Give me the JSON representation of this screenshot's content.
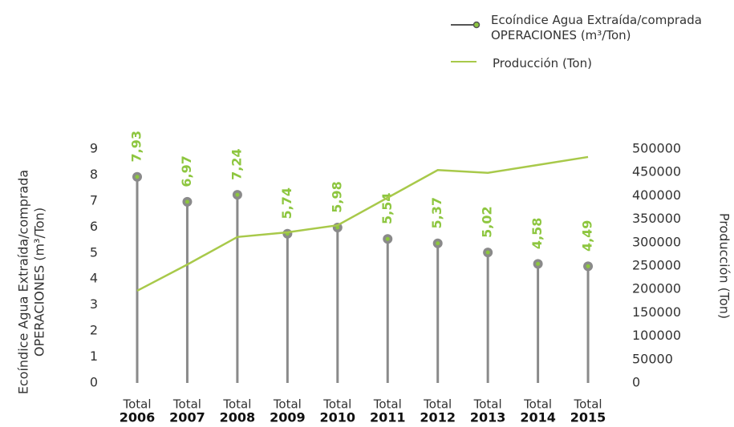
{
  "chart_data": {
    "type": "lollipop-line",
    "categories": [
      [
        "Total",
        "2006"
      ],
      [
        "Total",
        "2007"
      ],
      [
        "Total",
        "2008"
      ],
      [
        "Total",
        "2009"
      ],
      [
        "Total",
        "2010"
      ],
      [
        "Total",
        "2011"
      ],
      [
        "Total",
        "2012"
      ],
      [
        "Total",
        "2013"
      ],
      [
        "Total",
        "2014"
      ],
      [
        "Total",
        "2015"
      ]
    ],
    "series": [
      {
        "name": "Ecoíndice Agua Extraída/comprada OPERACIONES (m³/Ton)",
        "color": "#8a8a8a",
        "marker_color": "#8dc63f",
        "values": [
          7.93,
          6.97,
          7.24,
          5.74,
          5.98,
          5.54,
          5.37,
          5.02,
          4.58,
          4.49
        ],
        "value_labels": [
          "7,93",
          "6,97",
          "7,24",
          "5,74",
          "5,98",
          "5,54",
          "5,37",
          "5,02",
          "4,58",
          "4,49"
        ]
      },
      {
        "name": "Producción (Ton)",
        "color": "#a8c94a",
        "axis": "y2",
        "values": [
          197000,
          253000,
          312000,
          322000,
          337000,
          396000,
          455000,
          449000,
          466000,
          483000
        ]
      }
    ],
    "ylabel": [
      "Ecoíndice Agua Extraída/comprada",
      "OPERACIONES (m³/Ton)"
    ],
    "y2label": "Producción (Ton)",
    "ylim": [
      0,
      9
    ],
    "yticks": [
      0,
      1,
      2,
      3,
      4,
      5,
      6,
      7,
      8,
      9
    ],
    "y2lim": [
      0,
      500000
    ],
    "y2ticks": [
      0,
      50000,
      100000,
      150000,
      200000,
      250000,
      300000,
      350000,
      400000,
      450000,
      500000
    ]
  }
}
